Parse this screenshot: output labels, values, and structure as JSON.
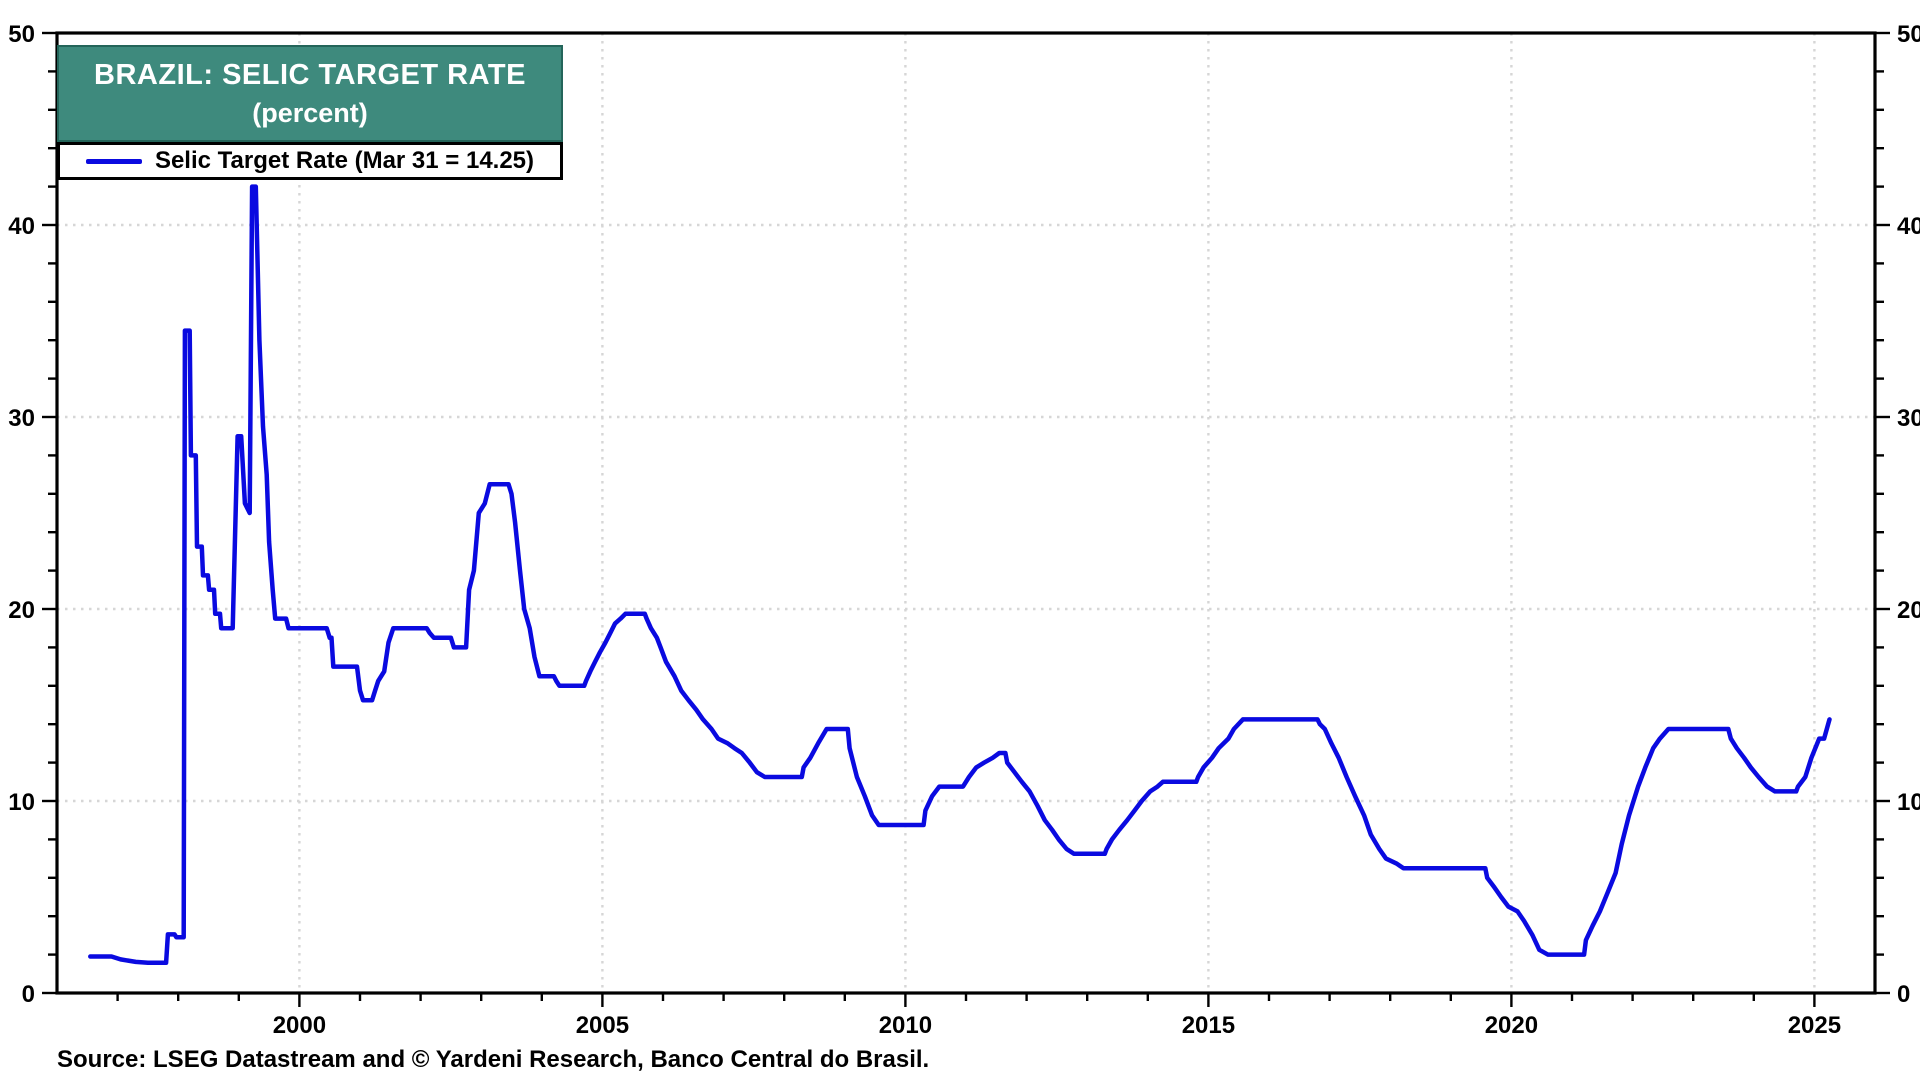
{
  "header": {
    "title_line1": "BRAZIL: SELIC TARGET RATE",
    "title_line2": "(percent)",
    "title_bg": "#3E8A7D"
  },
  "legend": {
    "label": "Selic Target Rate (Mar 31 = 14.25)",
    "line_color": "#0A0AE0"
  },
  "source": "Source: LSEG Datastream and © Yardeni Research, Banco Central do Brasil.",
  "colors": {
    "line": "#0A0AE0",
    "grid": "#D6D6D6",
    "axis": "#000000",
    "text": "#000000",
    "background": "#FFFFFF"
  },
  "chart_data": {
    "type": "line",
    "title": "BRAZIL: SELIC TARGET RATE (percent)",
    "xlabel": "",
    "ylabel": "",
    "xlim": [
      1996,
      2026
    ],
    "ylim": [
      0,
      50
    ],
    "y_ticks_major": [
      0,
      10,
      20,
      30,
      40,
      50
    ],
    "y_tick_minor_step": 2,
    "x_ticks_labeled": [
      2000,
      2005,
      2010,
      2015,
      2020,
      2025
    ],
    "x_tick_minor_step": 1,
    "grid": {
      "h_lines": [
        10,
        20,
        30,
        40
      ],
      "v_lines": [
        2000,
        2005,
        2010,
        2015,
        2020,
        2025
      ],
      "style": "dotted"
    },
    "legend_position": "top-left",
    "series": [
      {
        "name": "Selic Target Rate",
        "latest_point_label": "Mar 31 = 14.25",
        "latest_value": 14.25,
        "color": "#0A0AE0",
        "points": [
          [
            1996.55,
            1.9
          ],
          [
            1996.9,
            1.9
          ],
          [
            1997.05,
            1.75
          ],
          [
            1997.3,
            1.62
          ],
          [
            1997.5,
            1.58
          ],
          [
            1997.8,
            1.58
          ],
          [
            1997.83,
            3.05
          ],
          [
            1997.94,
            3.05
          ],
          [
            1997.97,
            2.9
          ],
          [
            1998.09,
            2.9
          ],
          [
            1998.11,
            34.5
          ],
          [
            1998.19,
            34.5
          ],
          [
            1998.21,
            28.0
          ],
          [
            1998.29,
            28.0
          ],
          [
            1998.31,
            23.25
          ],
          [
            1998.39,
            23.25
          ],
          [
            1998.41,
            21.75
          ],
          [
            1998.49,
            21.75
          ],
          [
            1998.51,
            21.0
          ],
          [
            1998.59,
            21.0
          ],
          [
            1998.61,
            19.75
          ],
          [
            1998.69,
            19.75
          ],
          [
            1998.71,
            19.0
          ],
          [
            1998.9,
            19.0
          ],
          [
            1998.98,
            29.0
          ],
          [
            1999.04,
            29.0
          ],
          [
            1999.1,
            25.5
          ],
          [
            1999.18,
            25.0
          ],
          [
            1999.22,
            42.0
          ],
          [
            1999.28,
            42.0
          ],
          [
            1999.34,
            34.0
          ],
          [
            1999.4,
            29.5
          ],
          [
            1999.46,
            27.0
          ],
          [
            1999.5,
            23.5
          ],
          [
            1999.56,
            21.0
          ],
          [
            1999.6,
            19.5
          ],
          [
            1999.78,
            19.5
          ],
          [
            1999.82,
            19.0
          ],
          [
            2000.45,
            19.0
          ],
          [
            2000.5,
            18.5
          ],
          [
            2000.53,
            18.5
          ],
          [
            2000.56,
            17.0
          ],
          [
            2000.95,
            17.0
          ],
          [
            2001.0,
            15.75
          ],
          [
            2001.05,
            15.25
          ],
          [
            2001.2,
            15.25
          ],
          [
            2001.25,
            15.75
          ],
          [
            2001.3,
            16.25
          ],
          [
            2001.4,
            16.75
          ],
          [
            2001.47,
            18.25
          ],
          [
            2001.55,
            19.0
          ],
          [
            2002.1,
            19.0
          ],
          [
            2002.15,
            18.75
          ],
          [
            2002.22,
            18.5
          ],
          [
            2002.5,
            18.5
          ],
          [
            2002.55,
            18.0
          ],
          [
            2002.75,
            18.0
          ],
          [
            2002.8,
            21.0
          ],
          [
            2002.88,
            22.0
          ],
          [
            2002.96,
            25.0
          ],
          [
            2003.06,
            25.5
          ],
          [
            2003.14,
            26.5
          ],
          [
            2003.45,
            26.5
          ],
          [
            2003.5,
            26.0
          ],
          [
            2003.56,
            24.5
          ],
          [
            2003.64,
            22.0
          ],
          [
            2003.71,
            20.0
          ],
          [
            2003.8,
            19.0
          ],
          [
            2003.88,
            17.5
          ],
          [
            2003.96,
            16.5
          ],
          [
            2004.2,
            16.5
          ],
          [
            2004.24,
            16.25
          ],
          [
            2004.29,
            16.0
          ],
          [
            2004.7,
            16.0
          ],
          [
            2004.73,
            16.25
          ],
          [
            2004.8,
            16.75
          ],
          [
            2004.88,
            17.25
          ],
          [
            2004.96,
            17.75
          ],
          [
            2005.05,
            18.25
          ],
          [
            2005.13,
            18.75
          ],
          [
            2005.21,
            19.25
          ],
          [
            2005.3,
            19.5
          ],
          [
            2005.38,
            19.75
          ],
          [
            2005.7,
            19.75
          ],
          [
            2005.73,
            19.5
          ],
          [
            2005.8,
            19.0
          ],
          [
            2005.9,
            18.5
          ],
          [
            2005.96,
            18.0
          ],
          [
            2006.05,
            17.25
          ],
          [
            2006.19,
            16.5
          ],
          [
            2006.3,
            15.75
          ],
          [
            2006.42,
            15.25
          ],
          [
            2006.55,
            14.75
          ],
          [
            2006.66,
            14.25
          ],
          [
            2006.8,
            13.75
          ],
          [
            2006.91,
            13.25
          ],
          [
            2007.07,
            13.0
          ],
          [
            2007.18,
            12.75
          ],
          [
            2007.3,
            12.5
          ],
          [
            2007.43,
            12.0
          ],
          [
            2007.55,
            11.5
          ],
          [
            2007.68,
            11.25
          ],
          [
            2008.29,
            11.25
          ],
          [
            2008.32,
            11.75
          ],
          [
            2008.43,
            12.25
          ],
          [
            2008.56,
            13.0
          ],
          [
            2008.7,
            13.75
          ],
          [
            2009.05,
            13.75
          ],
          [
            2009.08,
            12.75
          ],
          [
            2009.2,
            11.25
          ],
          [
            2009.33,
            10.25
          ],
          [
            2009.45,
            9.25
          ],
          [
            2009.56,
            8.75
          ],
          [
            2010.3,
            8.75
          ],
          [
            2010.33,
            9.5
          ],
          [
            2010.44,
            10.25
          ],
          [
            2010.56,
            10.75
          ],
          [
            2010.95,
            10.75
          ],
          [
            2011.05,
            11.25
          ],
          [
            2011.17,
            11.75
          ],
          [
            2011.3,
            12.0
          ],
          [
            2011.44,
            12.25
          ],
          [
            2011.55,
            12.5
          ],
          [
            2011.65,
            12.5
          ],
          [
            2011.68,
            12.0
          ],
          [
            2011.8,
            11.5
          ],
          [
            2011.92,
            11.0
          ],
          [
            2012.05,
            10.5
          ],
          [
            2012.18,
            9.75
          ],
          [
            2012.3,
            9.0
          ],
          [
            2012.42,
            8.5
          ],
          [
            2012.53,
            8.0
          ],
          [
            2012.66,
            7.5
          ],
          [
            2012.78,
            7.25
          ],
          [
            2013.29,
            7.25
          ],
          [
            2013.32,
            7.5
          ],
          [
            2013.41,
            8.0
          ],
          [
            2013.53,
            8.5
          ],
          [
            2013.66,
            9.0
          ],
          [
            2013.78,
            9.5
          ],
          [
            2013.9,
            10.0
          ],
          [
            2014.04,
            10.5
          ],
          [
            2014.16,
            10.75
          ],
          [
            2014.25,
            11.0
          ],
          [
            2014.8,
            11.0
          ],
          [
            2014.83,
            11.25
          ],
          [
            2014.92,
            11.75
          ],
          [
            2015.06,
            12.25
          ],
          [
            2015.17,
            12.75
          ],
          [
            2015.33,
            13.25
          ],
          [
            2015.42,
            13.75
          ],
          [
            2015.57,
            14.25
          ],
          [
            2016.8,
            14.25
          ],
          [
            2016.84,
            14.0
          ],
          [
            2016.92,
            13.75
          ],
          [
            2017.03,
            13.0
          ],
          [
            2017.15,
            12.25
          ],
          [
            2017.28,
            11.25
          ],
          [
            2017.42,
            10.25
          ],
          [
            2017.57,
            9.25
          ],
          [
            2017.68,
            8.25
          ],
          [
            2017.82,
            7.5
          ],
          [
            2017.93,
            7.0
          ],
          [
            2018.1,
            6.75
          ],
          [
            2018.22,
            6.5
          ],
          [
            2019.57,
            6.5
          ],
          [
            2019.6,
            6.0
          ],
          [
            2019.72,
            5.5
          ],
          [
            2019.83,
            5.0
          ],
          [
            2019.95,
            4.5
          ],
          [
            2020.1,
            4.25
          ],
          [
            2020.21,
            3.75
          ],
          [
            2020.35,
            3.0
          ],
          [
            2020.46,
            2.25
          ],
          [
            2020.6,
            2.0
          ],
          [
            2021.2,
            2.0
          ],
          [
            2021.23,
            2.75
          ],
          [
            2021.34,
            3.5
          ],
          [
            2021.46,
            4.25
          ],
          [
            2021.59,
            5.25
          ],
          [
            2021.72,
            6.25
          ],
          [
            2021.82,
            7.75
          ],
          [
            2021.94,
            9.25
          ],
          [
            2022.09,
            10.75
          ],
          [
            2022.21,
            11.75
          ],
          [
            2022.34,
            12.75
          ],
          [
            2022.45,
            13.25
          ],
          [
            2022.59,
            13.75
          ],
          [
            2023.58,
            13.75
          ],
          [
            2023.62,
            13.25
          ],
          [
            2023.72,
            12.75
          ],
          [
            2023.84,
            12.25
          ],
          [
            2023.95,
            11.75
          ],
          [
            2024.08,
            11.25
          ],
          [
            2024.22,
            10.75
          ],
          [
            2024.35,
            10.5
          ],
          [
            2024.7,
            10.5
          ],
          [
            2024.73,
            10.75
          ],
          [
            2024.85,
            11.25
          ],
          [
            2024.95,
            12.25
          ],
          [
            2025.08,
            13.25
          ],
          [
            2025.16,
            13.25
          ],
          [
            2025.25,
            14.25
          ]
        ]
      }
    ]
  }
}
